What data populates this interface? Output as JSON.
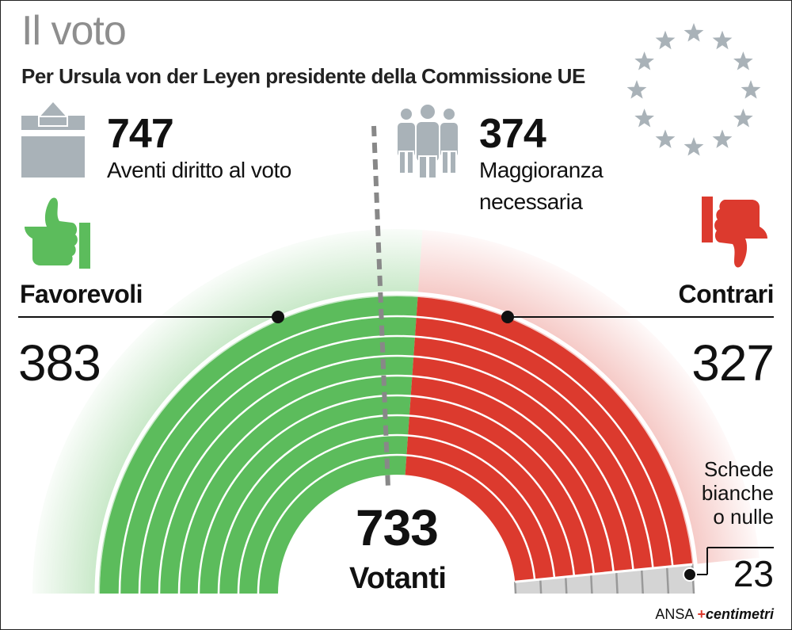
{
  "title": "Il voto",
  "subtitle": "Per Ursula von der Leyen presidente della Commissione UE",
  "eligible": {
    "value": "747",
    "label": "Aventi diritto al voto"
  },
  "majority": {
    "value": "374",
    "label_line1": "Maggioranza",
    "label_line2": "necessaria"
  },
  "favorevoli": {
    "label": "Favorevoli",
    "value": "383"
  },
  "contrari": {
    "label": "Contrari",
    "value": "327"
  },
  "schede": {
    "line1": "Schede",
    "line2": "bianche",
    "line3": "o nulle",
    "value": "23"
  },
  "votanti": {
    "value": "733",
    "label": "Votanti"
  },
  "credit": {
    "ansa": "ANSA",
    "centimetri": "centimetri"
  },
  "colors": {
    "green": "#5cbc5c",
    "red": "#dc3a2e",
    "grey": "#d4d4d4",
    "title_grey": "#8e8e8e",
    "icon_grey": "#a9b2b8"
  },
  "chart_data": {
    "type": "pie",
    "title": "Il voto",
    "subtitle": "Per Ursula von der Leyen presidente della Commissione UE",
    "total": 733,
    "categories": [
      "Favorevoli",
      "Contrari",
      "Schede bianche o nulle"
    ],
    "values": [
      383,
      327,
      23
    ],
    "majority_threshold": 374,
    "eligible_voters": 747,
    "colors": [
      "#5cbc5c",
      "#dc3a2e",
      "#d4d4d4"
    ]
  }
}
